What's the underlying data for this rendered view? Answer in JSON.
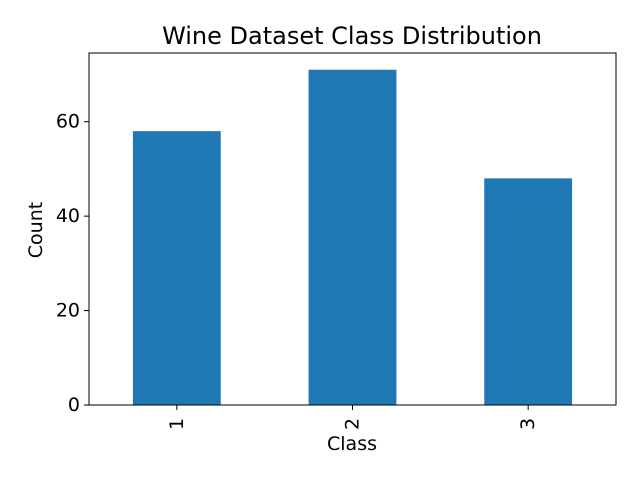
{
  "chart_data": {
    "type": "bar",
    "title": "Wine Dataset Class Distribution",
    "xlabel": "Class",
    "ylabel": "Count",
    "categories": [
      "1",
      "2",
      "3"
    ],
    "values": [
      58,
      71,
      48
    ],
    "ylim": [
      0,
      74.55
    ],
    "yticks": [
      0,
      20,
      40,
      60
    ],
    "x_tick_rotation": 90,
    "grid": false,
    "legend": "none",
    "bar_color": "#1f77b4"
  }
}
